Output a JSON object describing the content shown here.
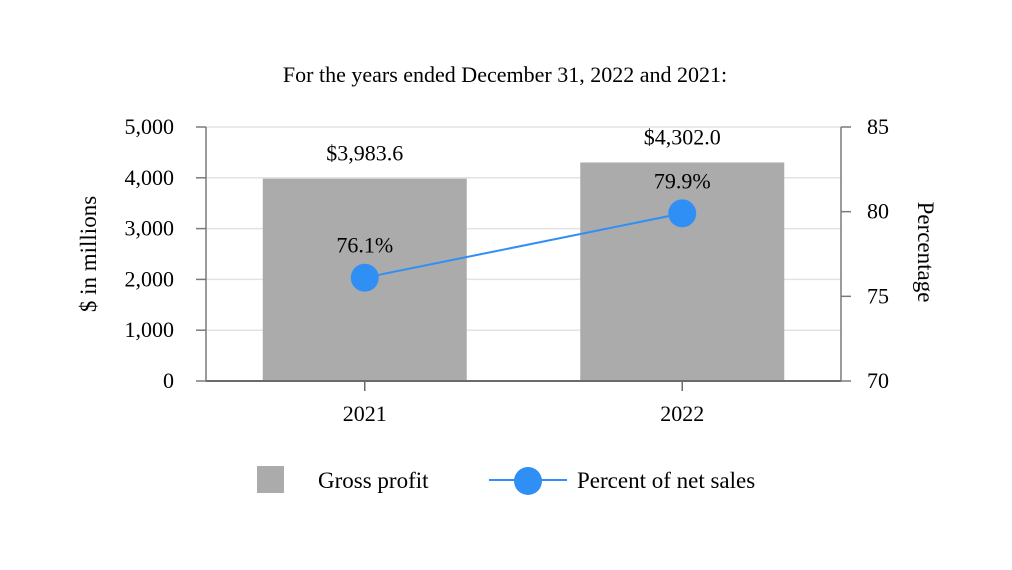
{
  "chart_data": {
    "type": "bar",
    "title": "For the years ended December 31, 2022 and 2021:",
    "categories": [
      "2021",
      "2022"
    ],
    "series": [
      {
        "name": "Gross profit",
        "type": "bar",
        "axis": "left",
        "values": [
          3983.6,
          4302.0
        ],
        "value_labels": [
          "$3,983.6",
          "$4,302.0"
        ],
        "color": "#ababab"
      },
      {
        "name": "Percent of net sales",
        "type": "line",
        "axis": "right",
        "values": [
          76.1,
          79.9
        ],
        "value_labels": [
          "76.1%",
          "79.9%"
        ],
        "color": "#2f8ff5"
      }
    ],
    "ylabel": "$ in millions",
    "ylim": [
      0,
      5000
    ],
    "yticks": [
      0,
      1000,
      2000,
      3000,
      4000,
      5000
    ],
    "ytick_labels": [
      "0",
      "1,000",
      "2,000",
      "3,000",
      "4,000",
      "5,000"
    ],
    "y2label": "Percentage",
    "y2lim": [
      70,
      85
    ],
    "y2ticks": [
      70,
      75,
      80,
      85
    ],
    "y2tick_labels": [
      "70",
      "75",
      "80",
      "85"
    ],
    "grid": true,
    "legend_position": "bottom"
  }
}
